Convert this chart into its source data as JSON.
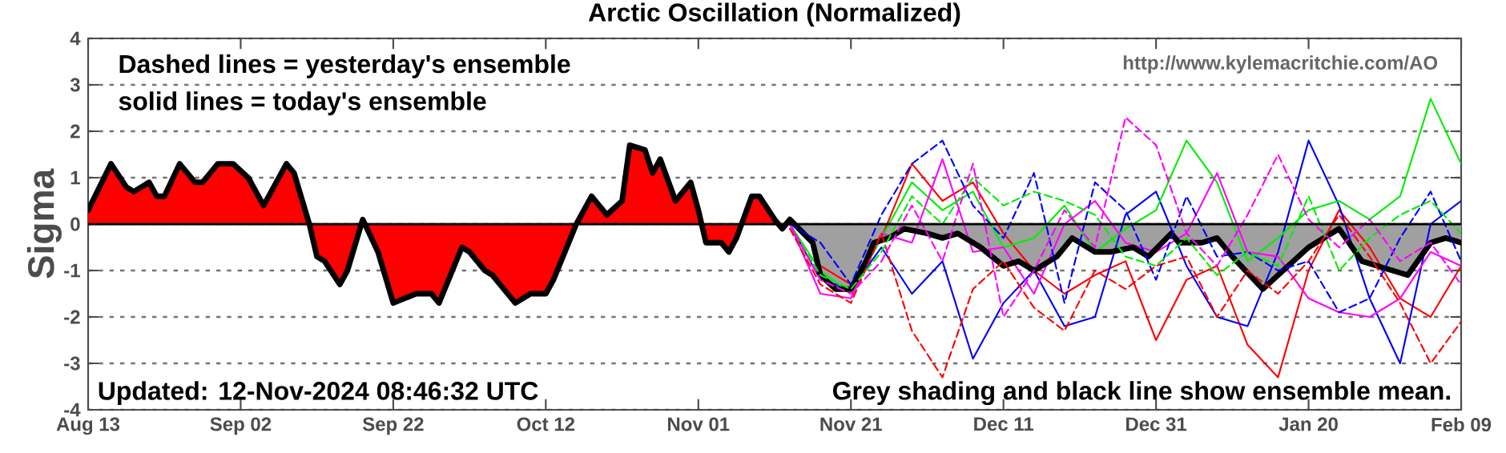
{
  "chart_data": {
    "type": "line",
    "title": "Arctic Oscillation (Normalized)",
    "ylabel": "Sigma",
    "annotations": [
      "Dashed lines = yesterday's ensemble",
      "solid lines = today's ensemble",
      "http://www.kylemacritchie.com/AO",
      "Updated: 12-Nov-2024 08:46:32 UTC",
      "Grey shading and black line show ensemble mean."
    ],
    "xlim": [
      "2024-08-13",
      "2025-02-09"
    ],
    "xticks": [
      {
        "value": "2024-08-13",
        "label": "Aug 13"
      },
      {
        "value": "2024-09-02",
        "label": "Sep 02"
      },
      {
        "value": "2024-09-22",
        "label": "Sep 22"
      },
      {
        "value": "2024-10-12",
        "label": "Oct 12"
      },
      {
        "value": "2024-11-01",
        "label": "Nov 01"
      },
      {
        "value": "2024-11-21",
        "label": "Nov 21"
      },
      {
        "value": "2024-12-11",
        "label": "Dec 11"
      },
      {
        "value": "2024-12-31",
        "label": "Dec 31"
      },
      {
        "value": "2025-01-20",
        "label": "Jan 20"
      },
      {
        "value": "2025-02-09",
        "label": "Feb 09"
      }
    ],
    "ylim": [
      -4,
      4
    ],
    "yticks": [
      -4,
      -3,
      -2,
      -1,
      0,
      1,
      2,
      3,
      4
    ],
    "grid": "y",
    "ref_lines": [
      {
        "axis": "y",
        "value": 0,
        "color": "#000000"
      }
    ],
    "x": [
      "2024-11-13",
      "2024-11-17",
      "2024-11-21",
      "2024-11-25",
      "2024-11-29",
      "2024-12-03",
      "2024-12-07",
      "2024-12-11",
      "2024-12-15",
      "2024-12-19",
      "2024-12-23",
      "2024-12-27",
      "2024-12-31",
      "2025-01-04",
      "2025-01-08",
      "2025-01-12",
      "2025-01-16",
      "2025-01-20",
      "2025-01-24",
      "2025-01-28",
      "2025-02-01",
      "2025-02-05",
      "2025-02-09"
    ],
    "series": [
      {
        "type": "area",
        "color": "#ff0000",
        "x": [
          "2024-08-13",
          "2024-08-16",
          "2024-08-18",
          "2024-08-19",
          "2024-08-21",
          "2024-08-22",
          "2024-08-23",
          "2024-08-25",
          "2024-08-27",
          "2024-08-28",
          "2024-08-30",
          "2024-09-01",
          "2024-09-03",
          "2024-09-05",
          "2024-09-08",
          "2024-09-09",
          "2024-09-11",
          "2024-09-12",
          "2024-09-13",
          "2024-09-15",
          "2024-09-16",
          "2024-09-18",
          "2024-09-20",
          "2024-09-22",
          "2024-09-25",
          "2024-09-27",
          "2024-09-28",
          "2024-10-01",
          "2024-10-02",
          "2024-10-04",
          "2024-10-05",
          "2024-10-08",
          "2024-10-10",
          "2024-10-12",
          "2024-10-13",
          "2024-10-15",
          "2024-10-16",
          "2024-10-18",
          "2024-10-20",
          "2024-10-22",
          "2024-10-23",
          "2024-10-25",
          "2024-10-26",
          "2024-10-27",
          "2024-10-29",
          "2024-10-31",
          "2024-11-01",
          "2024-11-02",
          "2024-11-04",
          "2024-11-05",
          "2024-11-06",
          "2024-11-08",
          "2024-11-09",
          "2024-11-11",
          "2024-11-12",
          "2024-11-13"
        ],
        "values": [
          0.3,
          1.3,
          0.8,
          0.7,
          0.9,
          0.6,
          0.6,
          1.3,
          0.9,
          0.9,
          1.3,
          1.3,
          1.0,
          0.4,
          1.3,
          1.1,
          0.0,
          -0.7,
          -0.8,
          -1.3,
          -1.0,
          0.1,
          -0.6,
          -1.7,
          -1.5,
          -1.5,
          -1.7,
          -0.5,
          -0.6,
          -1.0,
          -1.1,
          -1.7,
          -1.5,
          -1.5,
          -1.2,
          -0.4,
          0.0,
          0.6,
          0.2,
          0.5,
          1.7,
          1.6,
          1.1,
          1.4,
          0.5,
          0.9,
          0.3,
          -0.4,
          -0.4,
          -0.6,
          -0.3,
          0.6,
          0.6,
          0.1,
          -0.1,
          0.1
        ]
      },
      {
        "type": "area",
        "color": "#a0a0a0",
        "x": [
          "2024-11-13",
          "2024-11-16",
          "2024-11-17",
          "2024-11-19",
          "2024-11-21",
          "2024-11-23",
          "2024-11-24",
          "2024-11-26",
          "2024-11-28",
          "2024-12-01",
          "2024-12-03",
          "2024-12-05",
          "2024-12-08",
          "2024-12-11",
          "2024-12-13",
          "2024-12-15",
          "2024-12-18",
          "2024-12-20",
          "2024-12-23",
          "2024-12-25",
          "2024-12-28",
          "2024-12-30",
          "2025-01-02",
          "2025-01-03",
          "2025-01-06",
          "2025-01-08",
          "2025-01-10",
          "2025-01-14",
          "2025-01-16",
          "2025-01-20",
          "2025-01-24",
          "2025-01-27",
          "2025-01-29",
          "2025-02-02",
          "2025-02-05",
          "2025-02-07",
          "2025-02-09"
        ],
        "values": [
          0.1,
          -0.4,
          -1.1,
          -1.4,
          -1.4,
          -0.8,
          -0.4,
          -0.3,
          -0.1,
          -0.2,
          -0.3,
          -0.2,
          -0.5,
          -0.9,
          -0.8,
          -1.0,
          -0.7,
          -0.3,
          -0.6,
          -0.6,
          -0.5,
          -0.7,
          -0.2,
          -0.4,
          -0.4,
          -0.3,
          -0.7,
          -1.4,
          -1.1,
          -0.5,
          -0.1,
          -0.8,
          -0.9,
          -1.1,
          -0.4,
          -0.3,
          -0.4
        ]
      },
      {
        "color": "#ff0000",
        "line_style": "solid",
        "values": [
          null,
          -0.9,
          -1.3,
          -0.3,
          1.3,
          0.5,
          0.9,
          -0.2,
          -1.0,
          -1.5,
          -1.1,
          -0.8,
          -2.5,
          -1.2,
          -0.9,
          -2.6,
          -3.3,
          -1.0,
          0.3,
          -0.5,
          -1.6,
          -2.0,
          -0.9
        ]
      },
      {
        "color": "#0000ff",
        "line_style": "solid",
        "values": [
          0.0,
          -1.2,
          -1.4,
          -0.5,
          -1.5,
          -0.8,
          -2.9,
          -1.7,
          -1.0,
          -2.2,
          -2.0,
          0.2,
          0.7,
          -0.9,
          -2.0,
          -2.2,
          -0.6,
          1.8,
          0.4,
          -1.6,
          -3.0,
          0.0,
          0.5
        ]
      },
      {
        "color": "#00ee00",
        "line_style": "solid",
        "values": [
          0.0,
          -1.0,
          -1.5,
          -0.3,
          0.9,
          0.3,
          0.7,
          -0.5,
          -0.3,
          0.4,
          -0.6,
          -0.1,
          0.3,
          1.8,
          0.9,
          -0.8,
          -0.3,
          0.3,
          0.5,
          0.1,
          0.6,
          2.7,
          1.3
        ]
      },
      {
        "color": "#ff00ff",
        "line_style": "solid",
        "values": [
          0.0,
          -1.5,
          -1.6,
          -0.2,
          -0.4,
          1.4,
          -0.6,
          -0.5,
          -1.5,
          0.0,
          0.5,
          -0.4,
          -0.6,
          -0.2,
          1.1,
          -0.6,
          -0.7,
          -1.6,
          -1.9,
          -2.0,
          -1.6,
          -0.6,
          -0.9
        ]
      },
      {
        "color": "#ff0000",
        "line_style": "dashed",
        "values": [
          -0.1,
          -1.3,
          -1.7,
          -0.2,
          -2.3,
          -3.3,
          -1.4,
          -0.8,
          -1.8,
          -2.3,
          -1.0,
          -1.4,
          -0.9,
          -0.7,
          -2.0,
          -1.0,
          -1.5,
          -0.8,
          0.2,
          -0.7,
          -1.7,
          -3.0,
          -2.1
        ]
      },
      {
        "color": "#0000ff",
        "line_style": "dashed",
        "values": [
          0.0,
          -0.4,
          -1.3,
          0.2,
          1.3,
          1.8,
          0.4,
          -0.3,
          1.1,
          -1.7,
          0.9,
          0.3,
          -1.2,
          0.6,
          -0.7,
          -0.6,
          -1.0,
          -0.8,
          -1.9,
          -1.6,
          -0.3,
          0.7,
          -0.8
        ]
      },
      {
        "color": "#00ee00",
        "line_style": "dashed",
        "values": [
          0.0,
          -1.1,
          -1.4,
          -0.6,
          0.6,
          0.0,
          1.0,
          0.4,
          0.7,
          0.5,
          0.2,
          -0.7,
          -0.9,
          -0.3,
          -1.1,
          -0.6,
          -0.9,
          0.6,
          -1.0,
          -0.3,
          0.2,
          0.5,
          -0.2
        ]
      },
      {
        "color": "#ff00ff",
        "line_style": "dashed",
        "values": [
          0.0,
          -1.2,
          -1.5,
          -0.8,
          0.4,
          -0.8,
          1.3,
          -2.0,
          -1.0,
          0.3,
          -0.5,
          2.3,
          1.7,
          -0.2,
          -0.9,
          0.2,
          1.5,
          0.1,
          -0.5,
          0.1,
          -0.8,
          -0.4,
          -1.3
        ]
      },
      {
        "color": "#000000",
        "line_style": "solid",
        "x": [
          "2024-08-13",
          "2024-08-16",
          "2024-08-18",
          "2024-08-19",
          "2024-08-21",
          "2024-08-22",
          "2024-08-23",
          "2024-08-25",
          "2024-08-27",
          "2024-08-28",
          "2024-08-30",
          "2024-09-01",
          "2024-09-03",
          "2024-09-05",
          "2024-09-08",
          "2024-09-09",
          "2024-09-11",
          "2024-09-12",
          "2024-09-13",
          "2024-09-15",
          "2024-09-16",
          "2024-09-18",
          "2024-09-20",
          "2024-09-22",
          "2024-09-25",
          "2024-09-27",
          "2024-09-28",
          "2024-10-01",
          "2024-10-02",
          "2024-10-04",
          "2024-10-05",
          "2024-10-08",
          "2024-10-10",
          "2024-10-12",
          "2024-10-13",
          "2024-10-15",
          "2024-10-16",
          "2024-10-18",
          "2024-10-20",
          "2024-10-22",
          "2024-10-23",
          "2024-10-25",
          "2024-10-26",
          "2024-10-27",
          "2024-10-29",
          "2024-10-31",
          "2024-11-01",
          "2024-11-02",
          "2024-11-04",
          "2024-11-05",
          "2024-11-06",
          "2024-11-08",
          "2024-11-09",
          "2024-11-11",
          "2024-11-12",
          "2024-11-13",
          "2024-11-16",
          "2024-11-17",
          "2024-11-19",
          "2024-11-21",
          "2024-11-23",
          "2024-11-24",
          "2024-11-26",
          "2024-11-28",
          "2024-12-01",
          "2024-12-03",
          "2024-12-05",
          "2024-12-08",
          "2024-12-11",
          "2024-12-13",
          "2024-12-15",
          "2024-12-18",
          "2024-12-20",
          "2024-12-23",
          "2024-12-25",
          "2024-12-28",
          "2024-12-30",
          "2025-01-02",
          "2025-01-03",
          "2025-01-06",
          "2025-01-08",
          "2025-01-10",
          "2025-01-14",
          "2025-01-16",
          "2025-01-20",
          "2025-01-24",
          "2025-01-27",
          "2025-01-29",
          "2025-02-02",
          "2025-02-05",
          "2025-02-07",
          "2025-02-09"
        ],
        "values": [
          0.3,
          1.3,
          0.8,
          0.7,
          0.9,
          0.6,
          0.6,
          1.3,
          0.9,
          0.9,
          1.3,
          1.3,
          1.0,
          0.4,
          1.3,
          1.1,
          0.0,
          -0.7,
          -0.8,
          -1.3,
          -1.0,
          0.1,
          -0.6,
          -1.7,
          -1.5,
          -1.5,
          -1.7,
          -0.5,
          -0.6,
          -1.0,
          -1.1,
          -1.7,
          -1.5,
          -1.5,
          -1.2,
          -0.4,
          0.0,
          0.6,
          0.2,
          0.5,
          1.7,
          1.6,
          1.1,
          1.4,
          0.5,
          0.9,
          0.3,
          -0.4,
          -0.4,
          -0.6,
          -0.3,
          0.6,
          0.6,
          0.1,
          -0.1,
          0.1,
          -0.4,
          -1.1,
          -1.4,
          -1.4,
          -0.8,
          -0.4,
          -0.3,
          -0.1,
          -0.2,
          -0.3,
          -0.2,
          -0.5,
          -0.9,
          -0.8,
          -1.0,
          -0.7,
          -0.3,
          -0.6,
          -0.6,
          -0.5,
          -0.7,
          -0.2,
          -0.4,
          -0.4,
          -0.3,
          -0.7,
          -1.4,
          -1.1,
          -0.5,
          -0.1,
          -0.8,
          -0.9,
          -1.1,
          -0.4,
          -0.3,
          -0.4
        ]
      }
    ]
  }
}
